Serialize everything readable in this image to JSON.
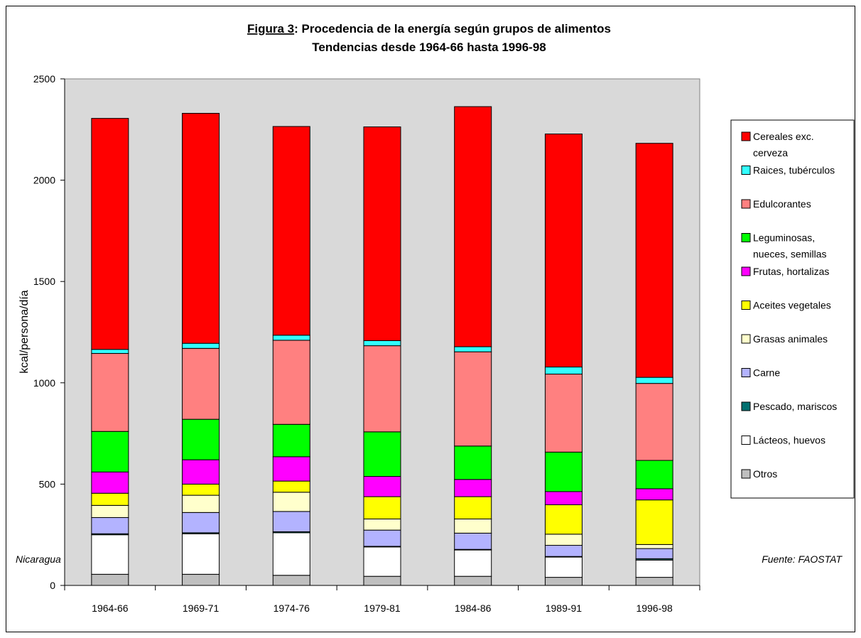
{
  "chart_data": {
    "type": "bar",
    "stacked": true,
    "title_prefix": "Figura 3",
    "title_rest": ": Procedencia de la energía según grupos de alimentos",
    "subtitle": "Tendencias desde 1964-66 hasta 1996-98",
    "xlabel": "",
    "ylabel": "kcal/persona/día",
    "ylim": [
      0,
      2500
    ],
    "yticks": [
      0,
      500,
      1000,
      1500,
      2000,
      2500
    ],
    "grid": false,
    "plot_background": "#d9d9d9",
    "legend_position": "right",
    "categories": [
      "1964-66",
      "1969-71",
      "1974-76",
      "1979-81",
      "1984-86",
      "1989-91",
      "1996-98"
    ],
    "series": [
      {
        "name": "Otros",
        "color": "#bfbfbf",
        "values": [
          55,
          55,
          50,
          45,
          45,
          40,
          40
        ]
      },
      {
        "name": "Lácteos, huevos",
        "color": "#ffffff",
        "values": [
          195,
          200,
          210,
          145,
          130,
          100,
          85
        ]
      },
      {
        "name": "Pescado, mariscos",
        "color": "#007070",
        "values": [
          5,
          5,
          5,
          3,
          3,
          3,
          7
        ]
      },
      {
        "name": "Carne",
        "color": "#b3b3ff",
        "values": [
          80,
          100,
          100,
          80,
          80,
          55,
          50
        ]
      },
      {
        "name": "Grasas animales",
        "color": "#ffffcc",
        "values": [
          60,
          85,
          95,
          55,
          70,
          55,
          20
        ]
      },
      {
        "name": "Aceites vegetales",
        "color": "#ffff00",
        "values": [
          60,
          55,
          55,
          110,
          110,
          145,
          220
        ]
      },
      {
        "name": "Frutas, hortalizas",
        "color": "#ff00ff",
        "values": [
          105,
          120,
          120,
          100,
          85,
          65,
          55
        ]
      },
      {
        "name": "Leguminosas, nueces, semillas",
        "color": "#00ff00",
        "values": [
          200,
          200,
          160,
          220,
          165,
          195,
          140
        ]
      },
      {
        "name": "Edulcorantes",
        "color": "#ff8080",
        "values": [
          385,
          350,
          415,
          425,
          465,
          385,
          380
        ]
      },
      {
        "name": "Raices, tubérculos",
        "color": "#33ffff",
        "values": [
          20,
          25,
          25,
          25,
          25,
          35,
          30
        ]
      },
      {
        "name": "Cereales exc. cerveza",
        "color": "#ff0000",
        "values": [
          1140,
          1135,
          1030,
          1055,
          1185,
          1150,
          1155
        ]
      }
    ],
    "legend_labels": [
      [
        "Cereales exc.",
        "cerveza"
      ],
      [
        "Raices, tubérculos"
      ],
      [
        "Edulcorantes"
      ],
      [
        "Leguminosas,",
        "nueces, semillas"
      ],
      [
        "Frutas, hortalizas"
      ],
      [
        "Aceites vegetales"
      ],
      [
        "Grasas animales"
      ],
      [
        "Carne"
      ],
      [
        "Pescado, mariscos"
      ],
      [
        "Lácteos, huevos"
      ],
      [
        "Otros"
      ]
    ],
    "legend_colors": [
      "#ff0000",
      "#33ffff",
      "#ff8080",
      "#00ff00",
      "#ff00ff",
      "#ffff00",
      "#ffffcc",
      "#b3b3ff",
      "#007070",
      "#ffffff",
      "#bfbfbf"
    ]
  },
  "footnotes": {
    "country": "Nicaragua",
    "source": "Fuente: FAOSTAT"
  }
}
